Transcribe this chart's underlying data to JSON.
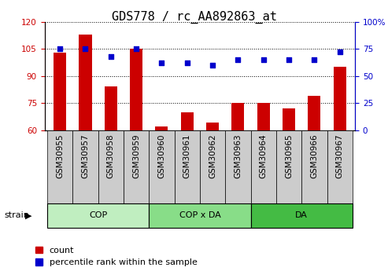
{
  "title": "GDS778 / rc_AA892863_at",
  "categories": [
    "GSM30955",
    "GSM30957",
    "GSM30958",
    "GSM30959",
    "GSM30960",
    "GSM30961",
    "GSM30962",
    "GSM30963",
    "GSM30964",
    "GSM30965",
    "GSM30966",
    "GSM30967"
  ],
  "counts": [
    103,
    113,
    84,
    105,
    62,
    70,
    64,
    75,
    75,
    72,
    79,
    95
  ],
  "percentiles": [
    75,
    75,
    68,
    75,
    62,
    62,
    60,
    65,
    65,
    65,
    65,
    72
  ],
  "bar_color": "#cc0000",
  "dot_color": "#0000cc",
  "ylim_left": [
    60,
    120
  ],
  "ylim_right": [
    0,
    100
  ],
  "yticks_left": [
    60,
    75,
    90,
    105,
    120
  ],
  "yticks_right": [
    0,
    25,
    50,
    75,
    100
  ],
  "group_defs": [
    {
      "label": "COP",
      "start": 0,
      "end": 3,
      "color": "#c0eec0"
    },
    {
      "label": "COP x DA",
      "start": 4,
      "end": 7,
      "color": "#88dd88"
    },
    {
      "label": "DA",
      "start": 8,
      "end": 11,
      "color": "#44bb44"
    }
  ],
  "tick_bg_color": "#cccccc",
  "legend_count": "count",
  "legend_percentile": "percentile rank within the sample",
  "title_fontsize": 11,
  "tick_fontsize": 7.5,
  "xlabel_fontsize": 7.5,
  "group_label_fontsize": 8,
  "legend_fontsize": 8
}
